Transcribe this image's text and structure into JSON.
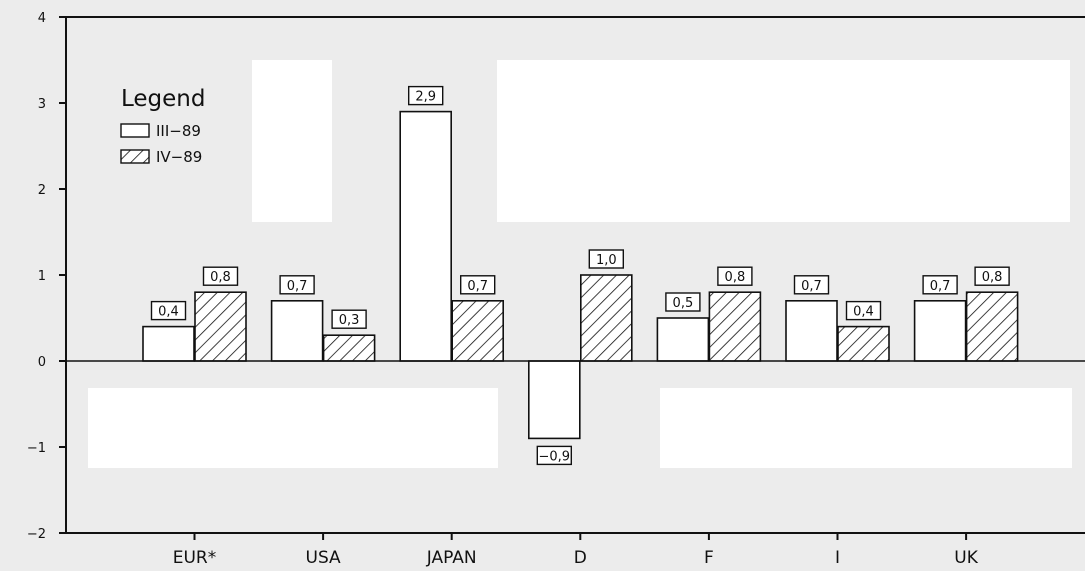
{
  "chart_data": {
    "type": "bar",
    "title": "",
    "xlabel": "",
    "ylabel": "",
    "ylim": [
      -2,
      4
    ],
    "yticks": [
      -2,
      -1,
      0,
      1,
      2,
      3,
      4
    ],
    "ytick_labels": [
      "−2",
      "−1",
      "0",
      "1",
      "2",
      "3",
      "4"
    ],
    "grid": false,
    "legend_position": "top-left",
    "legend_title": "Legend",
    "categories": [
      "EUR*",
      "USA",
      "JAPAN",
      "D",
      "F",
      "I",
      "UK"
    ],
    "series": [
      {
        "name": "III−89",
        "pattern": "plain",
        "color": "#ffffff",
        "values": [
          0.4,
          0.7,
          2.9,
          -0.9,
          0.5,
          0.7,
          0.7
        ],
        "labels": [
          "0,4",
          "0,7",
          "2,9",
          "−0,9",
          "0,5",
          "0,7",
          "0,7"
        ]
      },
      {
        "name": "IV−89",
        "pattern": "hatched",
        "color": "#ffffff",
        "values": [
          0.8,
          0.3,
          0.7,
          1.0,
          0.8,
          0.4,
          0.8
        ],
        "labels": [
          "0,8",
          "0,3",
          "0,7",
          "1,0",
          "0,8",
          "0,4",
          "0,8"
        ]
      }
    ]
  }
}
